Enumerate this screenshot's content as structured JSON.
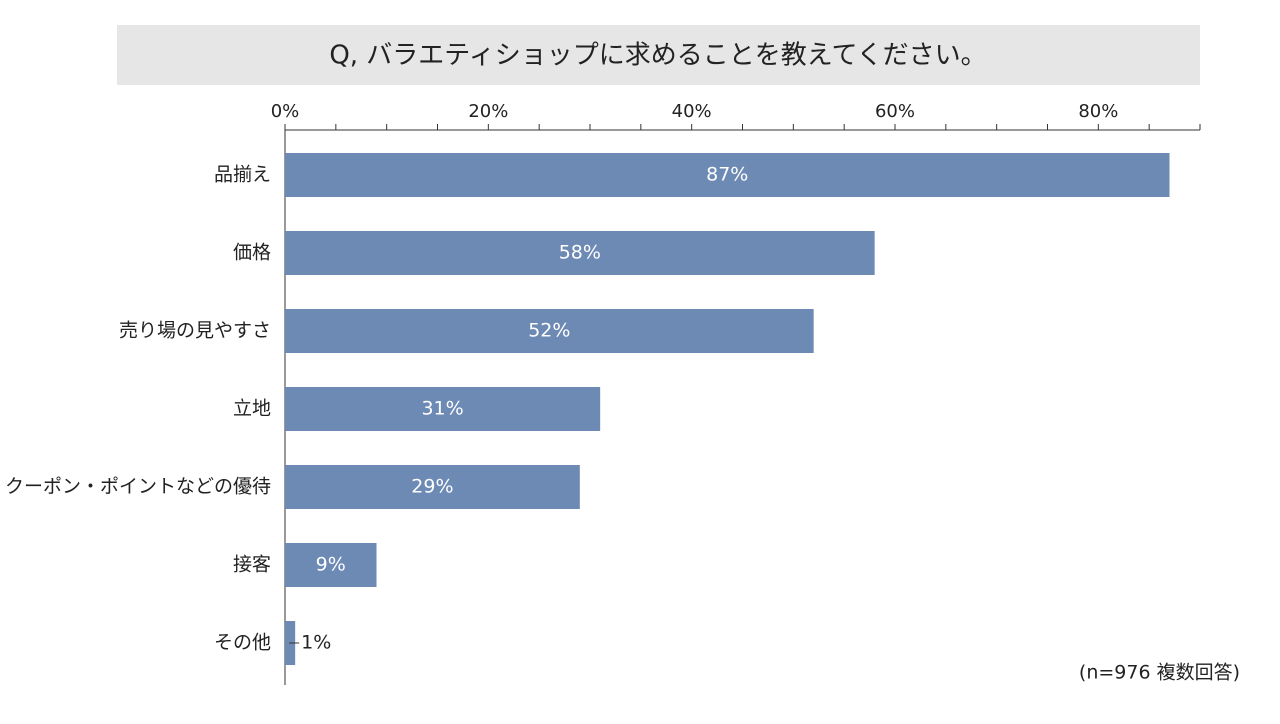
{
  "chart_data": {
    "type": "bar",
    "orientation": "horizontal",
    "title": "Q, バラエティショップに求めることを教えてください。",
    "categories": [
      "品揃え",
      "価格",
      "売り場の見やすさ",
      "立地",
      "クーポン・ポイントなどの優待",
      "接客",
      "その他"
    ],
    "values": [
      87,
      58,
      52,
      31,
      29,
      9,
      1
    ],
    "value_labels": [
      "87%",
      "58%",
      "52%",
      "31%",
      "29%",
      "9%",
      "1%"
    ],
    "color": "#6d8ab5",
    "xlim": [
      0,
      90
    ],
    "xticks": [
      {
        "value": 0,
        "label": "0%"
      },
      {
        "value": 20,
        "label": "20%"
      },
      {
        "value": 40,
        "label": "40%"
      },
      {
        "value": 60,
        "label": "60%"
      },
      {
        "value": 80,
        "label": "80%"
      }
    ],
    "xminorticks": [
      5,
      10,
      15,
      25,
      30,
      35,
      45,
      50,
      55,
      65,
      70,
      75,
      85,
      90
    ],
    "note": "(n=976 複数回答)"
  }
}
